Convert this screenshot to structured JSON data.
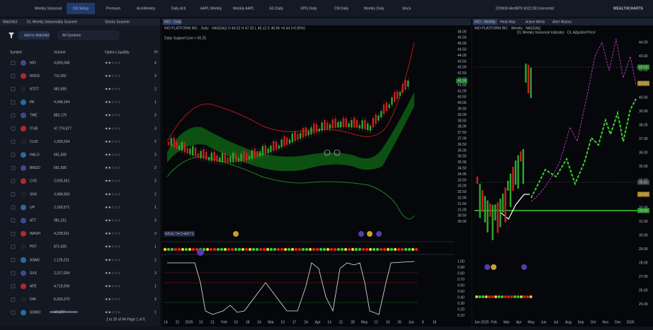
{
  "nav": {
    "tabs": [
      "Weekly Seasonal",
      "DG Setup",
      "Premium",
      "AcmWeekly",
      "Daily Acti",
      "AAPL Weekly",
      "Weekly AAPL",
      "SG Daily",
      "KPG Daily",
      "CM Daily",
      "Weekly Daily",
      "Stock"
    ],
    "account": "DOW30 Alert",
    "quote": "SPX 6022.00",
    "status": "Connected",
    "brand": "WEALTHCHARTS"
  },
  "left": {
    "tabs": [
      "Watchlist",
      "DL Weekly Seasonality Scanner",
      "Stocks Scanner"
    ],
    "button": "Add to Watchlist",
    "filter": "All Symbols",
    "columns": [
      "Symbol",
      "Volume",
      "Option Liquidity",
      "Pr"
    ],
    "rows": [
      [
        "NIO",
        "4,860,048",
        "★★☆☆☆",
        "4"
      ],
      [
        "NVDS",
        "711,552",
        "★★☆☆☆",
        "3"
      ],
      [
        "NTCT",
        "482,455",
        "★★☆☆☆",
        "2"
      ],
      [
        "PA",
        "4,348,164",
        "★★☆☆☆",
        "1"
      ],
      [
        "TME",
        "883,175",
        "★★☆☆☆",
        "3"
      ],
      [
        "ITUB",
        "47,774,877",
        "★★☆☆☆",
        "3"
      ],
      [
        "CLIO",
        "1,269,234",
        "★★☆☆☆",
        "2"
      ],
      [
        "HALO",
        "661,505",
        "★★☆☆☆",
        "3"
      ],
      [
        "BNGO",
        "661,505",
        "★★☆☆☆",
        "2"
      ],
      [
        "CVE",
        "2,925,451",
        "★★☆☆☆",
        "3"
      ],
      [
        "SNX",
        "3,484,900",
        "★★☆☆☆",
        "2"
      ],
      [
        "UP",
        "2,183,571",
        "★★☆☆☆",
        "1"
      ],
      [
        "ATT",
        "981,251",
        "★★☆☆☆",
        "3"
      ],
      [
        "WASH",
        "4,228,911",
        "★★☆☆☆",
        "3"
      ],
      [
        "PRT",
        "871,505",
        "★★☆☆☆",
        "1"
      ],
      [
        "ASAN",
        "1,126,211",
        "★★☆☆☆",
        "2"
      ],
      [
        "SXX",
        "2,317,034",
        "★★☆☆☆",
        "3"
      ],
      [
        "AFE",
        "4,715,506",
        "★★☆☆☆",
        "1"
      ],
      [
        "DNI",
        "6,363,270",
        "★★☆☆☆",
        "3"
      ],
      [
        "SGMO",
        "47,477",
        "★★☆☆☆",
        "1"
      ]
    ],
    "footer": "1 to 20 of 94  Page 1 of 5"
  },
  "middle": {
    "tab": "NIO - Daily",
    "legend": "NIO PLATFORM INC · Daily · NASDAQ  O 46.52  H 47.03  L 46.12  C 46.96  +0.44 (+0.95%)",
    "note": "Daily Support Line = 45.25",
    "brand": "WEALTHCHARTS",
    "last": "46.96",
    "price_ticks": [
      "46.00",
      "45.50",
      "45.00",
      "44.50",
      "44.00",
      "43.50",
      "43.00",
      "42.50",
      "42.00",
      "41.50",
      "41.00",
      "40.50",
      "40.00",
      "39.50",
      "39.00",
      "38.50",
      "38.00",
      "37.50",
      "37.00",
      "36.50",
      "36.00",
      "35.50",
      "35.00",
      "34.50",
      "34.00",
      "33.50",
      "33.00",
      "32.50",
      "32.00",
      "31.50",
      "31.00",
      "30.50",
      "30.00"
    ],
    "osc_ticks": [
      "1.00",
      "0.90",
      "0.80",
      "0.70",
      "0.60",
      "0.50",
      "0.40",
      "0.30",
      "0.20",
      "0.10"
    ],
    "x_labels": [
      "14",
      "21",
      "2025",
      "13",
      "21",
      "Feb",
      "10",
      "18",
      "24",
      "Mar",
      "10",
      "17",
      "24",
      "Apr",
      "14",
      "21",
      "28",
      "May",
      "12",
      "19",
      "26",
      "Jun",
      "9",
      "16"
    ]
  },
  "right": {
    "tabs": [
      "NIO - Weekly",
      "Heat Map",
      "Active Alerts",
      "Alert History"
    ],
    "legend": "NIO PLATFORM INC · Weekly · NASDAQ",
    "indicators": "DL Weekly Seasonal Indicator · DL Adjusted Price",
    "price_ticks": [
      "44.00",
      "43.00",
      "42.00",
      "41.00",
      "40.00",
      "39.00",
      "38.00",
      "37.00",
      "36.00",
      "35.00",
      "34.00",
      "33.00",
      "32.00",
      "31.00",
      "30.00",
      "29.00",
      "28.00",
      "27.00",
      "26.00",
      "25.00"
    ],
    "badges": [
      "42.63",
      "41.50",
      "36.81",
      "35.50",
      "34.44"
    ],
    "x_labels": [
      "Jan 2025",
      "Feb",
      "Mar",
      "Apr",
      "May",
      "Jun",
      "Jul",
      "Aug",
      "Sep",
      "Oct",
      "Nov",
      "Dec",
      "2026"
    ]
  }
}
